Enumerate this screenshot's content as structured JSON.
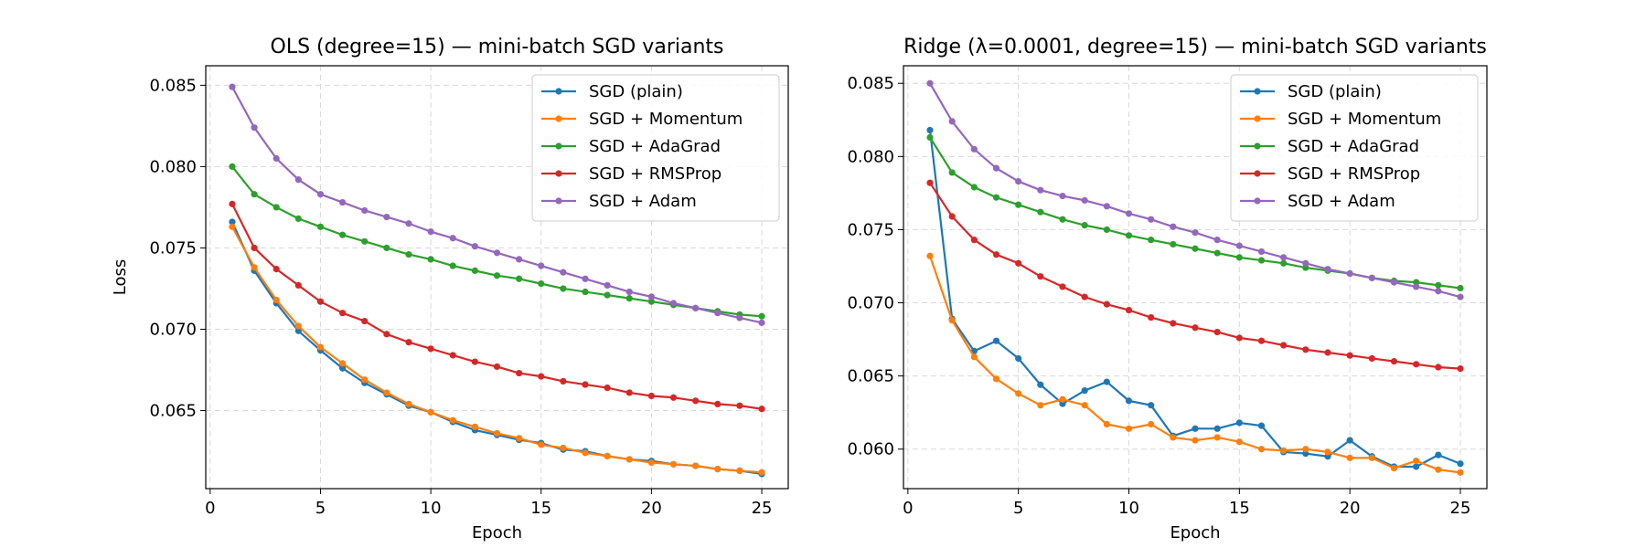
{
  "chart_data": [
    {
      "type": "line",
      "title": "OLS (degree=15) — mini-batch SGD variants",
      "xlabel": "Epoch",
      "ylabel": "Loss",
      "xlim": [
        -0.2,
        26.2
      ],
      "ylim": [
        0.0602,
        0.0862
      ],
      "xticks": [
        0,
        5,
        10,
        15,
        20,
        25
      ],
      "yticks": [
        0.065,
        0.07,
        0.075,
        0.08,
        0.085
      ],
      "ytick_labels": [
        "0.065",
        "0.070",
        "0.075",
        "0.080",
        "0.085"
      ],
      "grid": true,
      "legend_position": "top-right",
      "x": [
        1,
        2,
        3,
        4,
        5,
        6,
        7,
        8,
        9,
        10,
        11,
        12,
        13,
        14,
        15,
        16,
        17,
        18,
        19,
        20,
        21,
        22,
        23,
        24,
        25
      ],
      "series": [
        {
          "name": "SGD (plain)",
          "color": "#1f77b4",
          "values": [
            0.0766,
            0.0736,
            0.0716,
            0.0699,
            0.0687,
            0.0676,
            0.0667,
            0.066,
            0.0653,
            0.0649,
            0.0643,
            0.0638,
            0.0635,
            0.0632,
            0.063,
            0.0626,
            0.0625,
            0.0622,
            0.062,
            0.0619,
            0.0617,
            0.0616,
            0.0614,
            0.0613,
            0.0611
          ]
        },
        {
          "name": "SGD + Momentum",
          "color": "#ff7f0e",
          "values": [
            0.0763,
            0.0738,
            0.0718,
            0.0702,
            0.0689,
            0.0679,
            0.0669,
            0.0661,
            0.0654,
            0.0649,
            0.0644,
            0.064,
            0.0636,
            0.0633,
            0.0629,
            0.0627,
            0.0624,
            0.0622,
            0.062,
            0.0618,
            0.0617,
            0.0616,
            0.0614,
            0.0613,
            0.0612
          ]
        },
        {
          "name": "SGD + AdaGrad",
          "color": "#2ca02c",
          "values": [
            0.08,
            0.0783,
            0.0775,
            0.0768,
            0.0763,
            0.0758,
            0.0754,
            0.075,
            0.0746,
            0.0743,
            0.0739,
            0.0736,
            0.0733,
            0.0731,
            0.0728,
            0.0725,
            0.0723,
            0.0721,
            0.0719,
            0.0717,
            0.0715,
            0.0713,
            0.0711,
            0.0709,
            0.0708
          ]
        },
        {
          "name": "SGD + RMSProp",
          "color": "#d62728",
          "values": [
            0.0777,
            0.075,
            0.0737,
            0.0727,
            0.0717,
            0.071,
            0.0705,
            0.0697,
            0.0692,
            0.0688,
            0.0684,
            0.068,
            0.0677,
            0.0673,
            0.0671,
            0.0668,
            0.0666,
            0.0664,
            0.0661,
            0.0659,
            0.0658,
            0.0656,
            0.0654,
            0.0653,
            0.0651
          ]
        },
        {
          "name": "SGD + Adam",
          "color": "#9467bd",
          "values": [
            0.0849,
            0.0824,
            0.0805,
            0.0792,
            0.0783,
            0.0778,
            0.0773,
            0.0769,
            0.0765,
            0.076,
            0.0756,
            0.0751,
            0.0747,
            0.0743,
            0.0739,
            0.0735,
            0.0731,
            0.0727,
            0.0723,
            0.072,
            0.0716,
            0.0713,
            0.071,
            0.0707,
            0.0704
          ]
        }
      ]
    },
    {
      "type": "line",
      "title": "Ridge (λ=0.0001, degree=15) — mini-batch SGD variants",
      "xlabel": "Epoch",
      "ylabel": "",
      "xlim": [
        -0.2,
        26.2
      ],
      "ylim": [
        0.0573,
        0.0862
      ],
      "xticks": [
        0,
        5,
        10,
        15,
        20,
        25
      ],
      "yticks": [
        0.06,
        0.065,
        0.07,
        0.075,
        0.08,
        0.085
      ],
      "ytick_labels": [
        "0.060",
        "0.065",
        "0.070",
        "0.075",
        "0.080",
        "0.085"
      ],
      "grid": true,
      "legend_position": "top-right",
      "x": [
        1,
        2,
        3,
        4,
        5,
        6,
        7,
        8,
        9,
        10,
        11,
        12,
        13,
        14,
        15,
        16,
        17,
        18,
        19,
        20,
        21,
        22,
        23,
        24,
        25
      ],
      "series": [
        {
          "name": "SGD (plain)",
          "color": "#1f77b4",
          "values": [
            0.0818,
            0.0689,
            0.0667,
            0.0674,
            0.0662,
            0.0644,
            0.0631,
            0.064,
            0.0646,
            0.0633,
            0.063,
            0.0609,
            0.0614,
            0.0614,
            0.0618,
            0.0616,
            0.0598,
            0.0597,
            0.0595,
            0.0606,
            0.0595,
            0.0588,
            0.0588,
            0.0596,
            0.059
          ]
        },
        {
          "name": "SGD + Momentum",
          "color": "#ff7f0e",
          "values": [
            0.0732,
            0.0688,
            0.0663,
            0.0648,
            0.0638,
            0.063,
            0.0634,
            0.063,
            0.0617,
            0.0614,
            0.0617,
            0.0608,
            0.0606,
            0.0608,
            0.0605,
            0.06,
            0.0599,
            0.06,
            0.0598,
            0.0594,
            0.0594,
            0.0587,
            0.0592,
            0.0586,
            0.0584
          ]
        },
        {
          "name": "SGD + AdaGrad",
          "color": "#2ca02c",
          "values": [
            0.0813,
            0.0789,
            0.0779,
            0.0772,
            0.0767,
            0.0762,
            0.0757,
            0.0753,
            0.075,
            0.0746,
            0.0743,
            0.074,
            0.0737,
            0.0734,
            0.0731,
            0.0729,
            0.0727,
            0.0724,
            0.0722,
            0.072,
            0.0717,
            0.0715,
            0.0714,
            0.0712,
            0.071
          ]
        },
        {
          "name": "SGD + RMSProp",
          "color": "#d62728",
          "values": [
            0.0782,
            0.0759,
            0.0743,
            0.0733,
            0.0727,
            0.0718,
            0.0711,
            0.0704,
            0.0699,
            0.0695,
            0.069,
            0.0686,
            0.0683,
            0.068,
            0.0676,
            0.0674,
            0.0671,
            0.0668,
            0.0666,
            0.0664,
            0.0662,
            0.066,
            0.0658,
            0.0656,
            0.0655
          ]
        },
        {
          "name": "SGD + Adam",
          "color": "#9467bd",
          "values": [
            0.085,
            0.0824,
            0.0805,
            0.0792,
            0.0783,
            0.0777,
            0.0773,
            0.077,
            0.0766,
            0.0761,
            0.0757,
            0.0752,
            0.0748,
            0.0743,
            0.0739,
            0.0735,
            0.0731,
            0.0727,
            0.0723,
            0.072,
            0.0717,
            0.0714,
            0.0711,
            0.0708,
            0.0704
          ]
        }
      ]
    }
  ]
}
